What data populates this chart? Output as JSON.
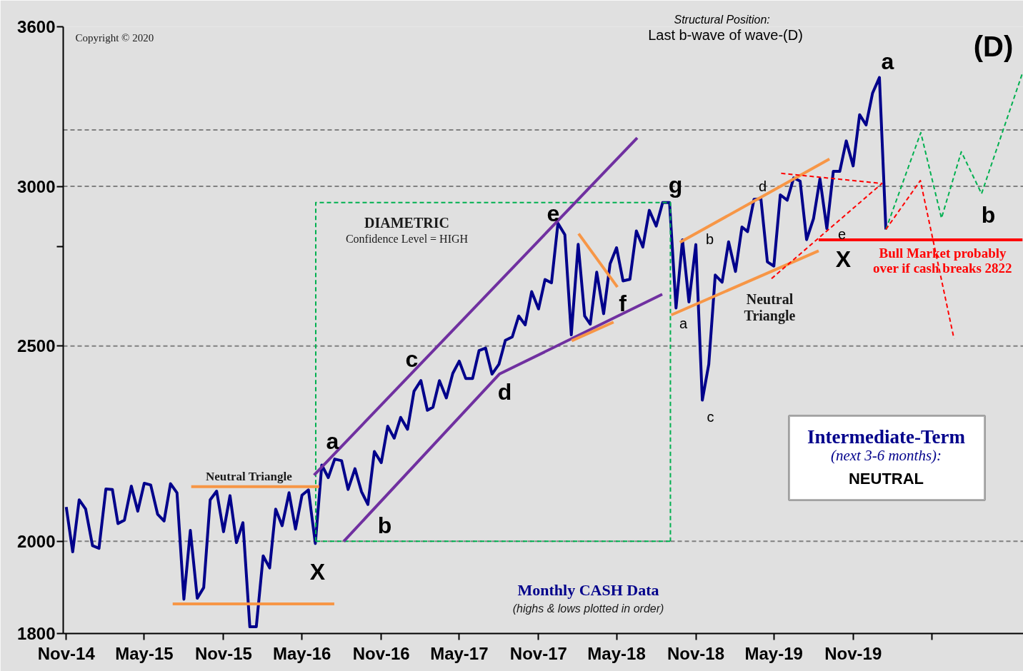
{
  "chart_data": {
    "type": "line",
    "title": "Last b-wave of wave-(D)",
    "subtitle": "Structural Position:",
    "log": "y",
    "xlim": [
      "2014-10-25",
      "2020-11-30"
    ],
    "xticks": [
      {
        "value": "2014-11-01",
        "label": "Nov-14"
      },
      {
        "value": "2015-05-01",
        "label": "May-15"
      },
      {
        "value": "2015-11-01",
        "label": "Nov-15"
      },
      {
        "value": "2016-05-01",
        "label": "May-16"
      },
      {
        "value": "2016-11-01",
        "label": "Nov-16"
      },
      {
        "value": "2017-05-01",
        "label": "May-17"
      },
      {
        "value": "2017-11-01",
        "label": "Nov-17"
      },
      {
        "value": "2018-05-01",
        "label": "May-18"
      },
      {
        "value": "2018-11-01",
        "label": "Nov-18"
      },
      {
        "value": "2019-05-01",
        "label": "May-19"
      },
      {
        "value": "2019-11-01",
        "label": "Nov-19"
      },
      {
        "value": "2020-05-01",
        "label": null
      }
    ],
    "ylim": [
      1800,
      3600
    ],
    "yticks": [
      1800,
      2000,
      2500,
      {
        "value": 2800,
        "label": null
      },
      3000,
      3600
    ],
    "ref_lines": [
      {
        "axis": "y",
        "value": 2000,
        "color": "#808080",
        "line_style": "dashed"
      },
      {
        "axis": "y",
        "value": 2500,
        "color": "#808080",
        "line_style": "dashed"
      },
      {
        "axis": "y",
        "value": 3000,
        "color": "#808080",
        "line_style": "dashed"
      },
      {
        "axis": "y",
        "value": 3200,
        "color": "#808080",
        "line_style": "dashed"
      }
    ],
    "series": [
      {
        "color": "#00008b",
        "line_style": "solid",
        "x": [
          "2014-11-01",
          "2014-11-16",
          "2014-12-01",
          "2014-12-16",
          "2015-01-01",
          "2015-01-16",
          "2015-02-01",
          "2015-02-16",
          "2015-03-01",
          "2015-03-16",
          "2015-04-01",
          "2015-04-16",
          "2015-05-01",
          "2015-05-16",
          "2015-06-01",
          "2015-06-16",
          "2015-07-01",
          "2015-07-16",
          "2015-08-01",
          "2015-08-16",
          "2015-09-01",
          "2015-09-16",
          "2015-10-01",
          "2015-10-16",
          "2015-11-01",
          "2015-11-16",
          "2015-12-01",
          "2015-12-16",
          "2016-01-01",
          "2016-01-16",
          "2016-02-01",
          "2016-02-16",
          "2016-03-01",
          "2016-03-16",
          "2016-04-01",
          "2016-04-16",
          "2016-05-01",
          "2016-05-16",
          "2016-06-01",
          "2016-06-16",
          "2016-07-01",
          "2016-07-16",
          "2016-08-01",
          "2016-08-16",
          "2016-09-01",
          "2016-09-16",
          "2016-10-01",
          "2016-10-16",
          "2016-11-01",
          "2016-11-16",
          "2016-12-01",
          "2016-12-16",
          "2017-01-01",
          "2017-01-16",
          "2017-02-01",
          "2017-02-16",
          "2017-03-01",
          "2017-03-16",
          "2017-04-01",
          "2017-04-16",
          "2017-05-01",
          "2017-05-16",
          "2017-06-01",
          "2017-06-16",
          "2017-07-01",
          "2017-07-16",
          "2017-08-01",
          "2017-08-16",
          "2017-09-01",
          "2017-09-16",
          "2017-10-01",
          "2017-10-16",
          "2017-11-01",
          "2017-11-16",
          "2017-12-01",
          "2017-12-16",
          "2018-01-01",
          "2018-01-16",
          "2018-02-01",
          "2018-02-16",
          "2018-03-01",
          "2018-03-16",
          "2018-04-01",
          "2018-04-16",
          "2018-05-01",
          "2018-05-16",
          "2018-06-01",
          "2018-06-16",
          "2018-07-01",
          "2018-07-16",
          "2018-08-01",
          "2018-08-16",
          "2018-09-01",
          "2018-09-16",
          "2018-10-01",
          "2018-10-16",
          "2018-11-01",
          "2018-11-16",
          "2018-12-01",
          "2018-12-16",
          "2019-01-01",
          "2019-01-16",
          "2019-02-01",
          "2019-02-16",
          "2019-03-01",
          "2019-03-16",
          "2019-04-01",
          "2019-04-16",
          "2019-05-01",
          "2019-05-16",
          "2019-06-01",
          "2019-06-16",
          "2019-07-01",
          "2019-07-16",
          "2019-08-01",
          "2019-08-16",
          "2019-09-01",
          "2019-09-16",
          "2019-10-01",
          "2019-10-16",
          "2019-11-01",
          "2019-11-16",
          "2019-12-01",
          "2019-12-16",
          "2020-01-01",
          "2020-01-16"
        ],
        "values": [
          2080,
          1976,
          2097,
          2075,
          1990,
          1984,
          2123,
          2122,
          2041,
          2049,
          2130,
          2070,
          2137,
          2133,
          2063,
          2047,
          2136,
          2114,
          1872,
          2025,
          1874,
          1897,
          2097,
          2118,
          2022,
          2107,
          1997,
          2043,
          1814,
          1814,
          1967,
          1940,
          2075,
          2036,
          2114,
          2028,
          2108,
          2121,
          1995,
          2182,
          2151,
          2197,
          2193,
          2122,
          2173,
          2117,
          2086,
          2216,
          2188,
          2281,
          2250,
          2304,
          2273,
          2374,
          2403,
          2323,
          2331,
          2403,
          2356,
          2423,
          2457,
          2409,
          2409,
          2487,
          2494,
          2421,
          2448,
          2516,
          2526,
          2587,
          2561,
          2660,
          2608,
          2697,
          2687,
          2876,
          2839,
          2532,
          2808,
          2587,
          2563,
          2720,
          2594,
          2746,
          2797,
          2693,
          2698,
          2851,
          2799,
          2919,
          2867,
          2945,
          2945,
          2611,
          2822,
          2629,
          2807,
          2350,
          2448,
          2711,
          2689,
          2816,
          2722,
          2864,
          2849,
          2956,
          2958,
          2752,
          2739,
          2971,
          2953,
          3029,
          3018,
          2823,
          2891,
          3026,
          2859,
          3052,
          3052,
          3160,
          3071,
          3256,
          3218,
          3337,
          3397,
          2856
        ]
      },
      {
        "color": "#00b050",
        "line_style": "dashed",
        "x": [
          "2020-01-16",
          "2020-04-06",
          "2020-05-24",
          "2020-07-09",
          "2020-08-25",
          "2020-11-28"
        ],
        "values": [
          2856,
          3190,
          2893,
          3121,
          2975,
          3415
        ]
      },
      {
        "color": "#ff0000",
        "line_style": "dashed",
        "x": [
          "2020-01-16",
          "2020-04-05",
          "2020-06-22"
        ],
        "values": [
          2856,
          3020,
          2521
        ]
      },
      {
        "color": "#ff0000",
        "line_style": "solid",
        "x": [
          "2019-08-13",
          "2020-11-28"
        ],
        "values": [
          2822,
          2822
        ]
      },
      {
        "color": "#00b050",
        "line_style": "dashed",
        "x": [
          "2016-06-02",
          "2016-06-02",
          "2018-09-03",
          "2018-09-03"
        ],
        "values": [
          2000,
          2945,
          2945,
          2000
        ]
      },
      {
        "color": "#00b050",
        "line_style": "dashed",
        "x": [
          "2016-06-02",
          "2018-09-03"
        ],
        "values": [
          2000,
          2000
        ]
      },
      {
        "color": "#7030a0",
        "line_style": "solid",
        "x": [
          "2016-05-29",
          "2018-06-18"
        ],
        "values": [
          2157,
          3171
        ]
      },
      {
        "color": "#7030a0",
        "line_style": "solid",
        "x": [
          "2016-08-06",
          "2017-08-02",
          "2018-08-15"
        ],
        "values": [
          2000,
          2421,
          2652
        ]
      },
      {
        "color": "#f79646",
        "line_style": "solid",
        "x": [
          "2015-08-18",
          "2016-06-10"
        ],
        "values": [
          2129,
          2129
        ]
      },
      {
        "color": "#f79646",
        "line_style": "solid",
        "x": [
          "2015-07-06",
          "2016-07-15"
        ],
        "values": [
          1862,
          1862
        ]
      },
      {
        "color": "#f79646",
        "line_style": "solid",
        "x": [
          "2018-02-02",
          "2018-05-03"
        ],
        "values": [
          2842,
          2674
        ]
      },
      {
        "color": "#f79646",
        "line_style": "solid",
        "x": [
          "2018-01-17",
          "2018-04-24"
        ],
        "values": [
          2515,
          2569
        ]
      },
      {
        "color": "#f79646",
        "line_style": "solid",
        "x": [
          "2018-09-25",
          "2019-09-07"
        ],
        "values": [
          2814,
          3095
        ]
      },
      {
        "color": "#f79646",
        "line_style": "solid",
        "x": [
          "2018-09-05",
          "2019-08-13"
        ],
        "values": [
          2590,
          2787
        ]
      },
      {
        "color": "#ff0000",
        "line_style": "dashed",
        "x": [
          "2019-05-18",
          "2020-01-07",
          "2019-04-24"
        ],
        "values": [
          3045,
          3010,
          2698
        ]
      }
    ],
    "annotations": [
      "X",
      "a",
      "b",
      "c",
      "d",
      "e",
      "f",
      "g",
      "a",
      "b",
      "c",
      "d",
      "e",
      "X",
      "a",
      "b",
      "Neutral Triangle",
      "Neutral",
      "Triangle",
      "DIAMETRIC",
      "Confidence Level = HIGH",
      "Bull Market probably",
      "over if cash breaks 2822",
      "Monthly CASH Data",
      "(highs & lows plotted in order)",
      "Copyright © 2020",
      "(D)",
      "Intermediate-Term",
      "(next 3-6 months):",
      "NEUTRAL"
    ]
  }
}
